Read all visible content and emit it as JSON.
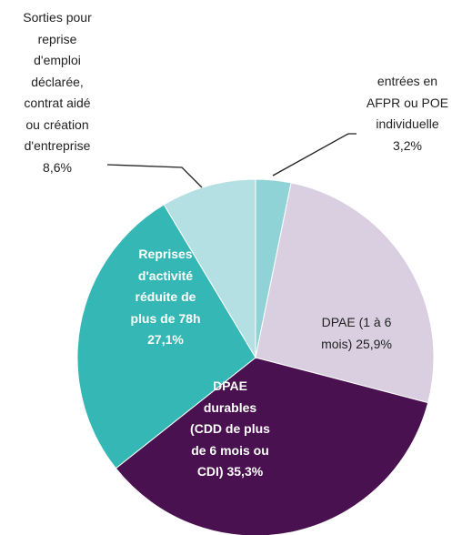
{
  "chart_data": {
    "type": "pie",
    "categories": [
      "entrées en\nAFPR ou POE\nindividuelle",
      "DPAE (1 à 6\nmois)",
      "DPAE\ndurables\n(CDD de plus\nde 6 mois ou\nCDI)",
      "Reprises\nd'activité\nréduite de\nplus de 78h",
      "Sorties pour\nreprise\nd'emploi\ndéclarée,\ncontrat aidé\nou création\nd'entreprise"
    ],
    "values": [
      3.2,
      25.9,
      35.3,
      27.1,
      8.6
    ],
    "value_labels": [
      "3,2%",
      "25,9%",
      "35,3%",
      "27,1%",
      "8,6%"
    ],
    "colors": [
      "#8fd3d6",
      "#d9cfe0",
      "#4a1150",
      "#35b8b5",
      "#b5e0e3"
    ]
  }
}
